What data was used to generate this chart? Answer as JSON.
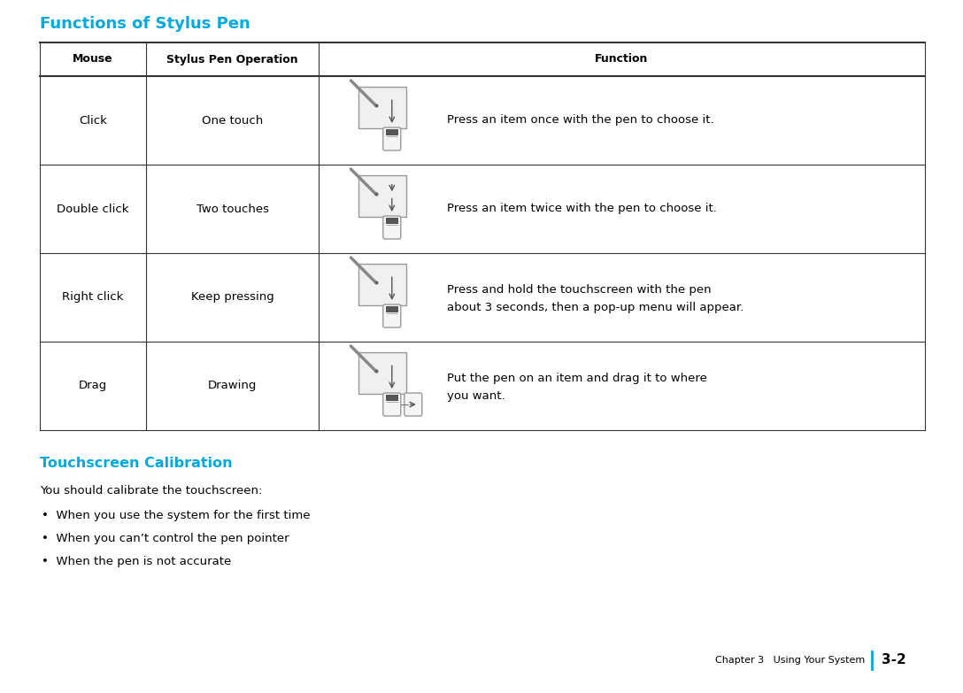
{
  "title": "Functions of Stylus Pen",
  "title_color": "#00AADD",
  "title_fontsize": 13,
  "header_row": [
    "Mouse",
    "Stylus Pen Operation",
    "Function"
  ],
  "rows": [
    {
      "mouse": "Click",
      "operation": "One touch",
      "function_line1": "Press an item once with the pen to choose it.",
      "function_line2": ""
    },
    {
      "mouse": "Double click",
      "operation": "Two touches",
      "function_line1": "Press an item twice with the pen to choose it.",
      "function_line2": ""
    },
    {
      "mouse": "Right click",
      "operation": "Keep pressing",
      "function_line1": "Press and hold the touchscreen with the pen",
      "function_line2": "about 3 seconds, then a pop-up menu will appear."
    },
    {
      "mouse": "Drag",
      "operation": "Drawing",
      "function_line1": "Put the pen on an item and drag it to where",
      "function_line2": "you want."
    }
  ],
  "section2_title": "Touchscreen Calibration",
  "section2_title_color": "#00AADD",
  "section2_body": "You should calibrate the touchscreen:",
  "bullets": [
    "When you use the system for the first time",
    "When you can’t control the pen pointer",
    "When the pen is not accurate"
  ],
  "footer_left": "Chapter 3   Using Your System",
  "footer_right": "3-2",
  "bg_color": "#FFFFFF",
  "text_color": "#000000",
  "line_color": "#333333"
}
